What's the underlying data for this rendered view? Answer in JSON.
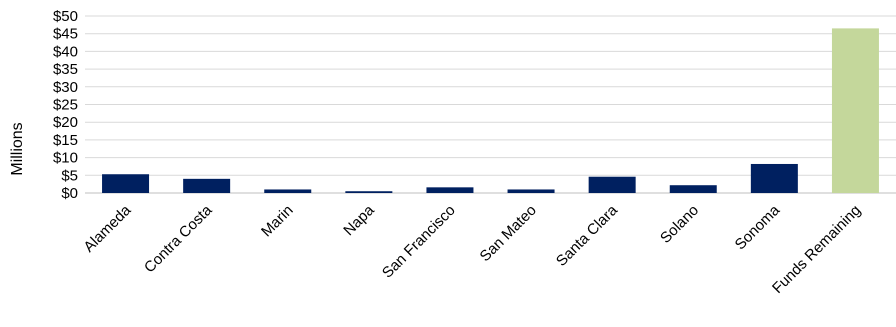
{
  "chart_data": {
    "type": "bar",
    "title": "",
    "xlabel": "",
    "ylabel": "Millions",
    "ylim": [
      0,
      50
    ],
    "yticks": [
      0,
      5,
      10,
      15,
      20,
      25,
      30,
      35,
      40,
      45,
      50
    ],
    "ytick_labels": [
      "$0",
      "$5",
      "$10",
      "$15",
      "$20",
      "$25",
      "$30",
      "$35",
      "$40",
      "$45",
      "$50"
    ],
    "grid": true,
    "categories": [
      "Alameda",
      "Contra Costa",
      "Marin",
      "Napa",
      "San Francisco",
      "San Mateo",
      "Santa Clara",
      "Solano",
      "Sonoma",
      "Funds Remaining"
    ],
    "values": [
      5.3,
      4.0,
      1.0,
      0.5,
      1.6,
      1.0,
      4.6,
      2.2,
      8.2,
      46.5
    ],
    "colors": {
      "county": "#002060",
      "remaining": "#c4d79b"
    }
  }
}
